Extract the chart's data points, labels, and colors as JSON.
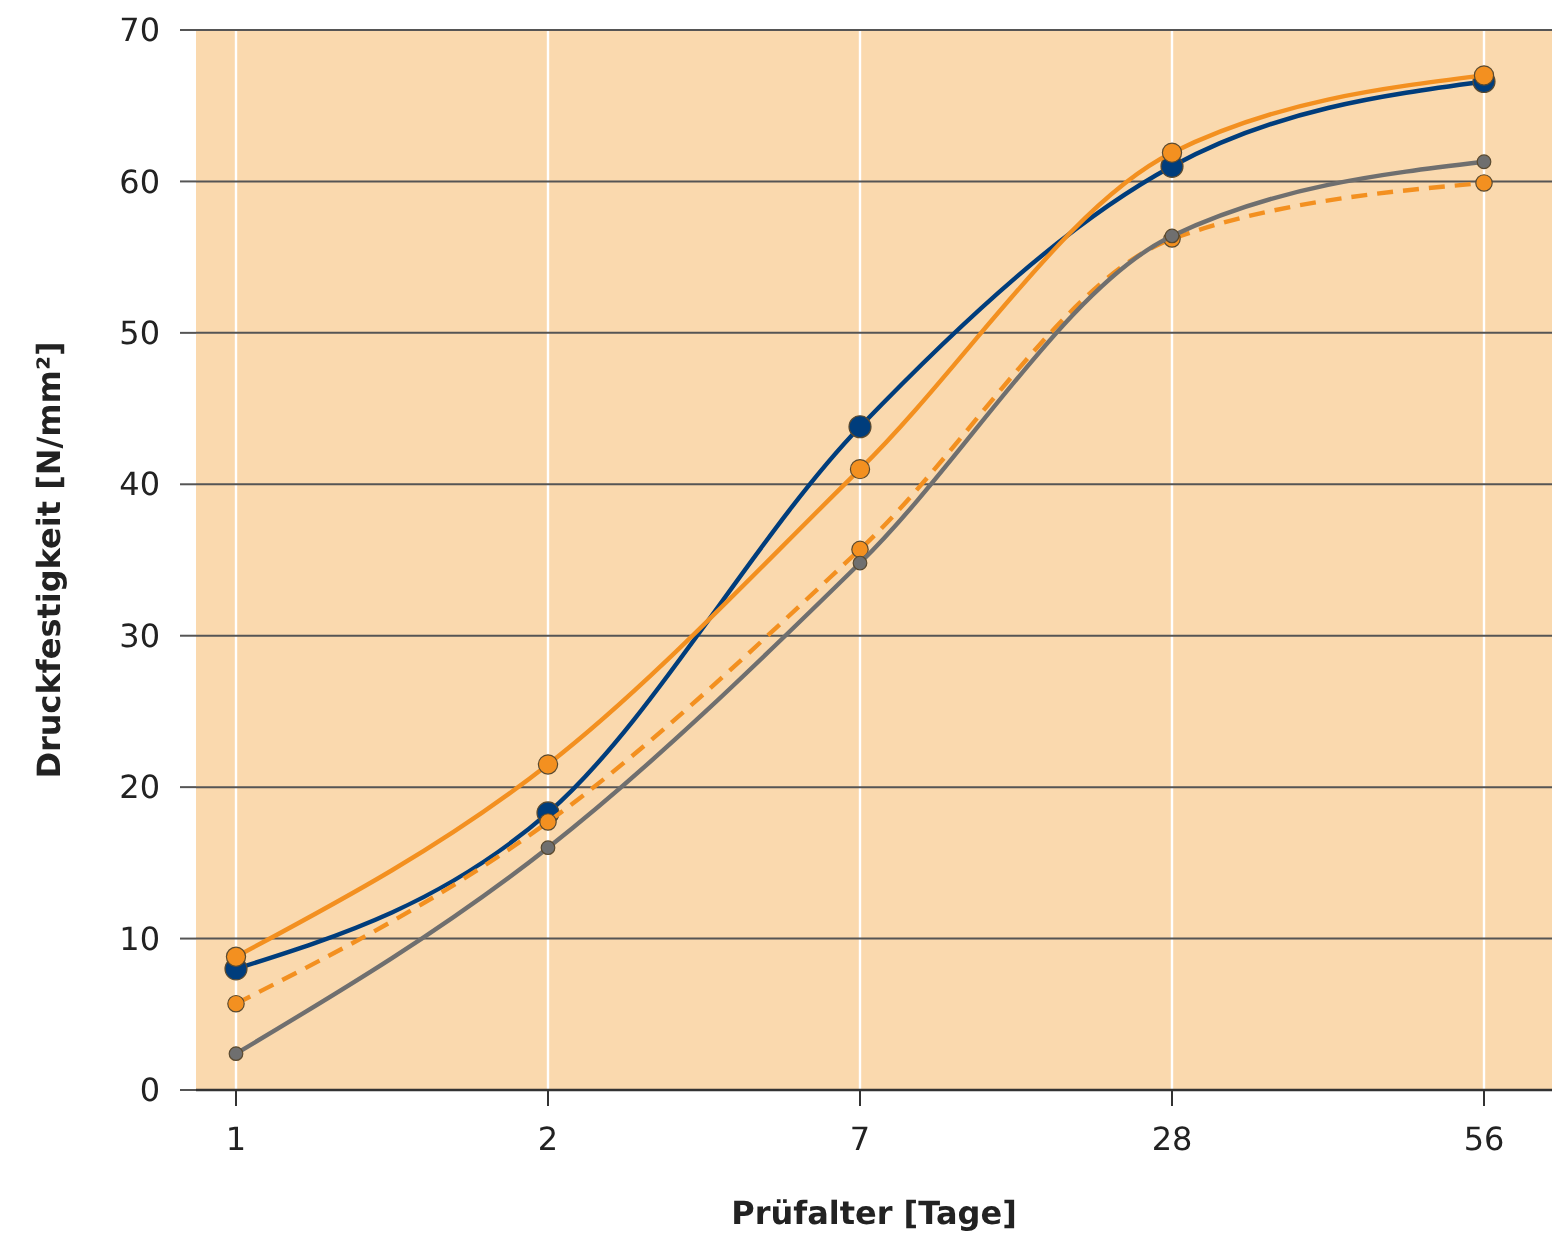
{
  "chart_data": {
    "type": "line",
    "xlabel": "Prüfalter [Tage]",
    "ylabel": "Druckfestigkeit [N/mm²]",
    "categories": [
      "1",
      "2",
      "7",
      "28",
      "56"
    ],
    "ylim": [
      0,
      70
    ],
    "yticks": [
      0,
      10,
      20,
      30,
      40,
      50,
      60,
      70
    ],
    "grid": true,
    "marker": "circle",
    "series": [
      {
        "color": "#003d7c",
        "values": [
          8.0,
          18.3,
          43.8,
          61.0,
          66.6
        ]
      },
      {
        "color": "#f39020",
        "values": [
          8.8,
          21.5,
          41.0,
          61.9,
          67.0
        ]
      },
      {
        "color": "#f39020",
        "values": [
          5.7,
          17.7,
          35.7,
          56.2,
          59.9
        ],
        "line_style": "dashed"
      },
      {
        "color": "#6f6f6f",
        "values": [
          2.4,
          16.0,
          34.8,
          56.4,
          61.3
        ]
      }
    ]
  }
}
